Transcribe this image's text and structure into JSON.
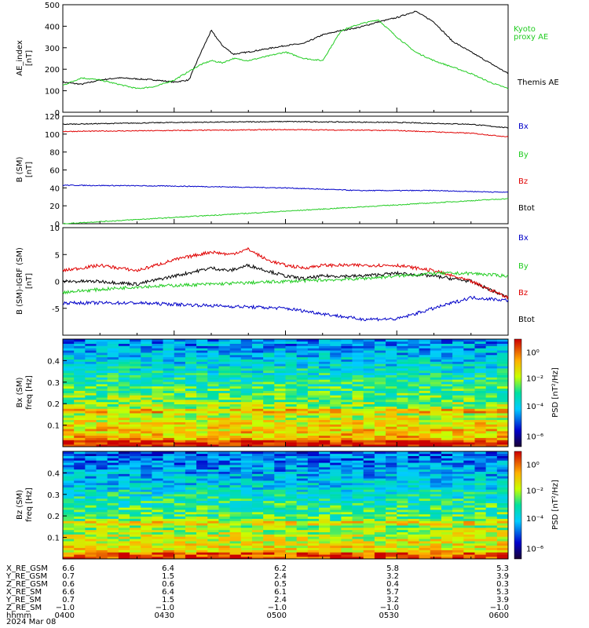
{
  "colors": {
    "black": "#000000",
    "red": "#e00000",
    "green": "#22cc22",
    "blue": "#0000c8"
  },
  "chart_data": [
    {
      "id": "ae",
      "type": "line",
      "ylabel": "AE_index",
      "yunit": "[nT]",
      "ylim": [
        0,
        500
      ],
      "yticks": [
        "0",
        "100",
        "200",
        "300",
        "400",
        "500"
      ],
      "xlim": [
        0,
        120
      ],
      "series": [
        {
          "name": "Themis AE",
          "color": "#000000",
          "x": [
            0,
            5,
            10,
            15,
            20,
            25,
            30,
            34,
            37,
            40,
            43,
            46,
            50,
            55,
            60,
            65,
            70,
            75,
            80,
            85,
            90,
            95,
            100,
            105,
            110,
            115,
            120
          ],
          "values": [
            140,
            130,
            150,
            160,
            155,
            150,
            140,
            150,
            270,
            380,
            310,
            270,
            280,
            295,
            310,
            320,
            360,
            380,
            395,
            420,
            440,
            470,
            420,
            330,
            280,
            230,
            180
          ]
        },
        {
          "name": "Kyoto proxy AE",
          "color": "#22cc22",
          "x": [
            0,
            5,
            10,
            15,
            20,
            25,
            30,
            34,
            37,
            40,
            43,
            46,
            50,
            55,
            60,
            65,
            70,
            75,
            80,
            85,
            90,
            95,
            100,
            105,
            110,
            115,
            120
          ],
          "values": [
            125,
            160,
            150,
            130,
            110,
            120,
            150,
            190,
            220,
            240,
            230,
            250,
            240,
            260,
            280,
            250,
            240,
            380,
            410,
            430,
            350,
            280,
            240,
            210,
            180,
            140,
            110
          ]
        }
      ],
      "legend": [
        "Kyoto proxy AE",
        "Themis AE"
      ],
      "legend_text": {
        "kyoto_line1": "Kyoto",
        "kyoto_line2": "proxy AE",
        "themis": "Themis AE"
      }
    },
    {
      "id": "bsm",
      "type": "line",
      "ylabel": "B (SM)",
      "yunit": "[nT]",
      "ylim": [
        0,
        120
      ],
      "yticks": [
        "0",
        "20",
        "40",
        "60",
        "80",
        "100",
        "120"
      ],
      "xlim": [
        0,
        120
      ],
      "series": [
        {
          "name": "Bx",
          "color": "#000000",
          "x": [
            0,
            30,
            60,
            90,
            110,
            120
          ],
          "values": [
            111,
            113,
            114,
            113,
            111,
            107
          ]
        },
        {
          "name": "By",
          "color": "#e00000",
          "x": [
            0,
            30,
            60,
            90,
            110,
            120
          ],
          "values": [
            103,
            104,
            105,
            104,
            101,
            97
          ]
        },
        {
          "name": "Bz",
          "color": "#0000c8",
          "x": [
            0,
            30,
            60,
            80,
            100,
            120
          ],
          "values": [
            43,
            42,
            40,
            37,
            37,
            35
          ]
        },
        {
          "name": "Btot",
          "color": "#22cc22",
          "x": [
            0,
            30,
            60,
            90,
            120
          ],
          "values": [
            0,
            7,
            14,
            21,
            28
          ]
        }
      ],
      "legend": [
        "Bx",
        "By",
        "Bz",
        "Btot"
      ]
    },
    {
      "id": "dbsm",
      "type": "line",
      "ylabel": "B (SM)-IGRF (SM)",
      "yunit": "[nT]",
      "ylim": [
        -10,
        10
      ],
      "yticks": [
        "-5",
        "0",
        "5",
        "10"
      ],
      "xlim": [
        0,
        120
      ],
      "series": [
        {
          "name": "Bx",
          "color": "#000000",
          "x": [
            0,
            10,
            20,
            30,
            40,
            45,
            50,
            55,
            60,
            65,
            70,
            80,
            90,
            100,
            110,
            120
          ],
          "values": [
            0,
            0,
            -0.5,
            1,
            2.5,
            2,
            3,
            2,
            1,
            0.5,
            1,
            1,
            1.5,
            1,
            0,
            -3
          ]
        },
        {
          "name": "By",
          "color": "#e00000",
          "x": [
            0,
            10,
            20,
            30,
            40,
            45,
            50,
            55,
            60,
            65,
            70,
            80,
            90,
            100,
            110,
            120
          ],
          "values": [
            2,
            3,
            2,
            4,
            5.5,
            5,
            6,
            4,
            3,
            2.5,
            3,
            3,
            3,
            2,
            0,
            -3
          ]
        },
        {
          "name": "Bz",
          "color": "#22cc22",
          "x": [
            0,
            20,
            40,
            60,
            80,
            100,
            110,
            120
          ],
          "values": [
            -2,
            -1,
            -0.5,
            0,
            0.5,
            1.5,
            1.5,
            1
          ]
        },
        {
          "name": "Btot",
          "color": "#0000c8",
          "x": [
            0,
            20,
            40,
            60,
            70,
            80,
            90,
            100,
            110,
            120
          ],
          "values": [
            -4,
            -4,
            -4.5,
            -5,
            -6,
            -7,
            -7,
            -5,
            -3,
            -3.5
          ]
        }
      ],
      "legend": [
        "Bx",
        "By",
        "Bz",
        "Btot"
      ]
    },
    {
      "id": "spec_bx",
      "type": "heatmap",
      "ylabel_line1": "Bx (SM)",
      "ylabel_line2": "freq [Hz]",
      "ylim": [
        0,
        0.5
      ],
      "yticks": [
        "0.1",
        "0.2",
        "0.3",
        "0.4"
      ],
      "colorbar_label": "PSD [nT²/Hz]",
      "colorbar_ticks": [
        "10⁰",
        "10⁻²",
        "10⁻⁴",
        "10⁻⁶"
      ]
    },
    {
      "id": "spec_bz",
      "type": "heatmap",
      "ylabel_line1": "Bz (SM)",
      "ylabel_line2": "freq [Hz]",
      "ylim": [
        0,
        0.5
      ],
      "yticks": [
        "0.1",
        "0.2",
        "0.3",
        "0.4"
      ],
      "colorbar_label": "PSD [nT²/Hz]",
      "colorbar_ticks": [
        "10⁰",
        "10⁻²",
        "10⁻⁴",
        "10⁻⁶"
      ]
    }
  ],
  "ephemeris": {
    "rows": [
      {
        "label": "X_RE_GSM",
        "values": [
          "6.6",
          "6.4",
          "6.2",
          "5.8",
          "5.3"
        ]
      },
      {
        "label": "Y_RE_GSM",
        "values": [
          "0.7",
          "1.5",
          "2.4",
          "3.2",
          "3.9"
        ]
      },
      {
        "label": "Z_RE_GSM",
        "values": [
          "0.6",
          "0.6",
          "0.5",
          "0.4",
          "0.3"
        ]
      },
      {
        "label": "X_RE_SM",
        "values": [
          "6.6",
          "6.4",
          "6.1",
          "5.7",
          "5.3"
        ]
      },
      {
        "label": "Y_RE_SM",
        "values": [
          "0.7",
          "1.5",
          "2.4",
          "3.2",
          "3.9"
        ]
      },
      {
        "label": "Z_RE_SM",
        "values": [
          "−1.0",
          "−1.0",
          "−1.0",
          "−1.0",
          "−1.0"
        ]
      },
      {
        "label": "hhmm",
        "values": [
          "0400",
          "0430",
          "0500",
          "0530",
          "0600"
        ]
      }
    ],
    "date": "2024 Mar 08"
  }
}
